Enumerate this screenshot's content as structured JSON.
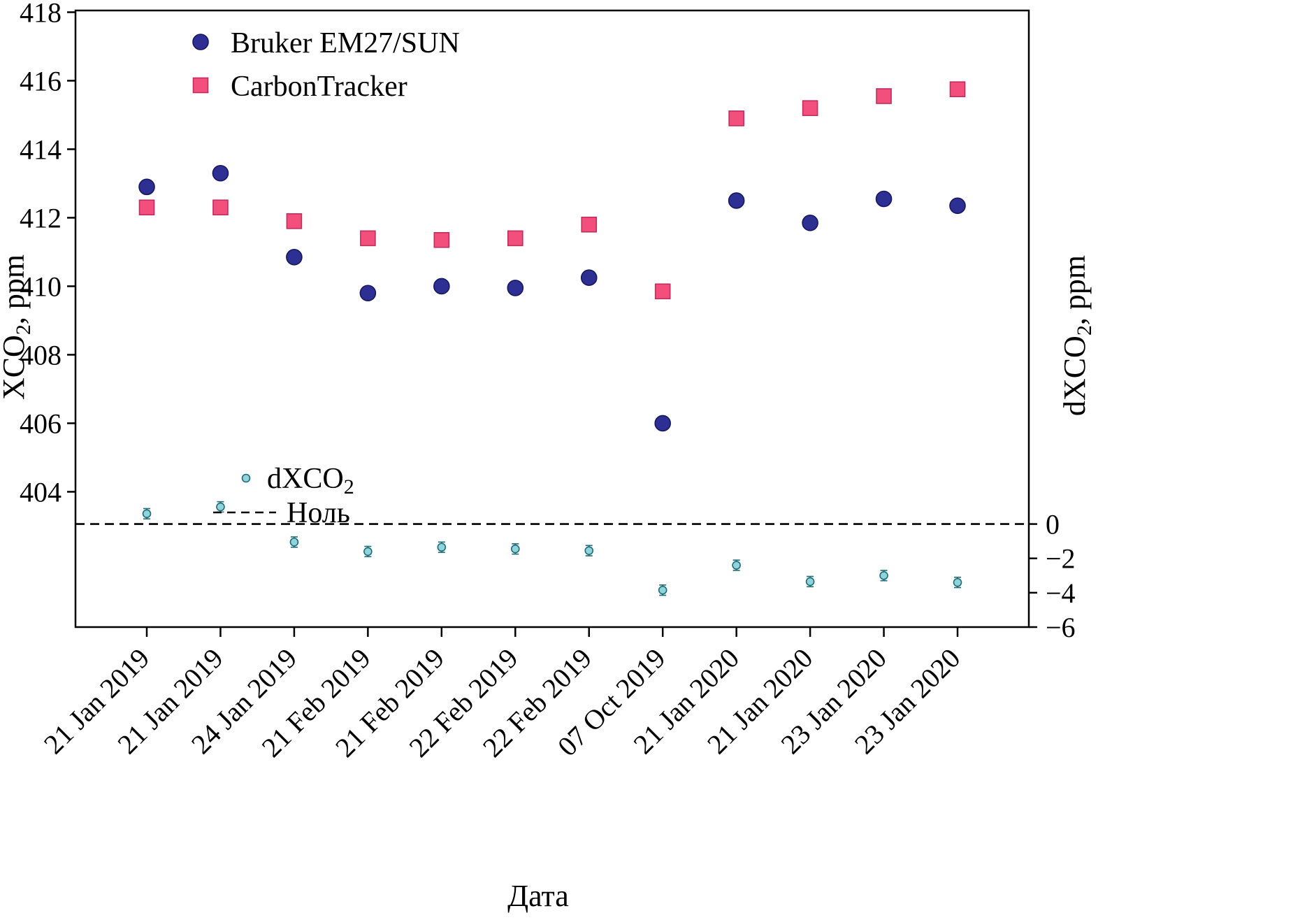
{
  "chart_data": {
    "type": "scatter",
    "title": "",
    "xlabel": "Дата",
    "categories": [
      "21 Jan 2019",
      "21 Jan 2019",
      "24 Jan 2019",
      "21 Feb 2019",
      "21 Feb 2019",
      "22 Feb 2019",
      "22 Feb 2019",
      "07 Oct 2019",
      "21 Jan 2020",
      "21 Jan 2020",
      "23 Jan 2020",
      "23 Jan 2020"
    ],
    "left_axis": {
      "label_pre": "XCO",
      "label_sub": "2",
      "label_post": ", ppm",
      "ticks": [
        418,
        416,
        414,
        412,
        410,
        408,
        406,
        404
      ],
      "min": 400.05,
      "max": 418.05
    },
    "right_axis": {
      "label_pre": "dXCO",
      "label_sub": "2",
      "label_post": ", ppm",
      "ticks": [
        0,
        -2,
        -4,
        -6
      ],
      "tick_labels": [
        "0",
        "−2",
        "−4",
        "−6"
      ],
      "min": -6.0,
      "max": 29.9
    },
    "series": [
      {
        "name": "Bruker EM27/SUN",
        "axis": "left",
        "marker": "circle",
        "color": "#2d3092",
        "edge": "#16185f",
        "size": 11,
        "values": [
          412.9,
          413.3,
          410.85,
          409.8,
          410.0,
          409.95,
          410.25,
          406.0,
          412.5,
          411.85,
          412.55,
          412.35
        ]
      },
      {
        "name": "CarbonTracker",
        "axis": "left",
        "marker": "square",
        "color": "#f34f7d",
        "edge": "#c22d5e",
        "size": 10.5,
        "values": [
          412.3,
          412.3,
          411.9,
          411.4,
          411.35,
          411.4,
          411.8,
          409.85,
          414.9,
          415.2,
          415.55,
          415.75
        ]
      },
      {
        "name": "dXCO2",
        "axis": "right",
        "marker": "circle",
        "color": "#8fd4da",
        "edge": "#1f6b78",
        "size": 5.5,
        "yerr": 0.3,
        "values": [
          0.6,
          1.0,
          -1.05,
          -1.6,
          -1.35,
          -1.45,
          -1.55,
          -3.85,
          -2.4,
          -3.35,
          -3.0,
          -3.4
        ]
      }
    ],
    "zero_line": {
      "value": 0,
      "axis": "right",
      "style": "dashed",
      "color": "#000000",
      "label": "Ноль"
    },
    "legend_top": {
      "items": [
        {
          "label": "Bruker EM27/SUN"
        },
        {
          "label": "CarbonTracker"
        }
      ]
    },
    "legend_mid": {
      "items": [
        {
          "label_pre": "dXCO",
          "label_sub": "2"
        },
        {
          "label": "Ноль"
        }
      ]
    },
    "grid": "off",
    "legend_position": "upper-left-inside"
  }
}
